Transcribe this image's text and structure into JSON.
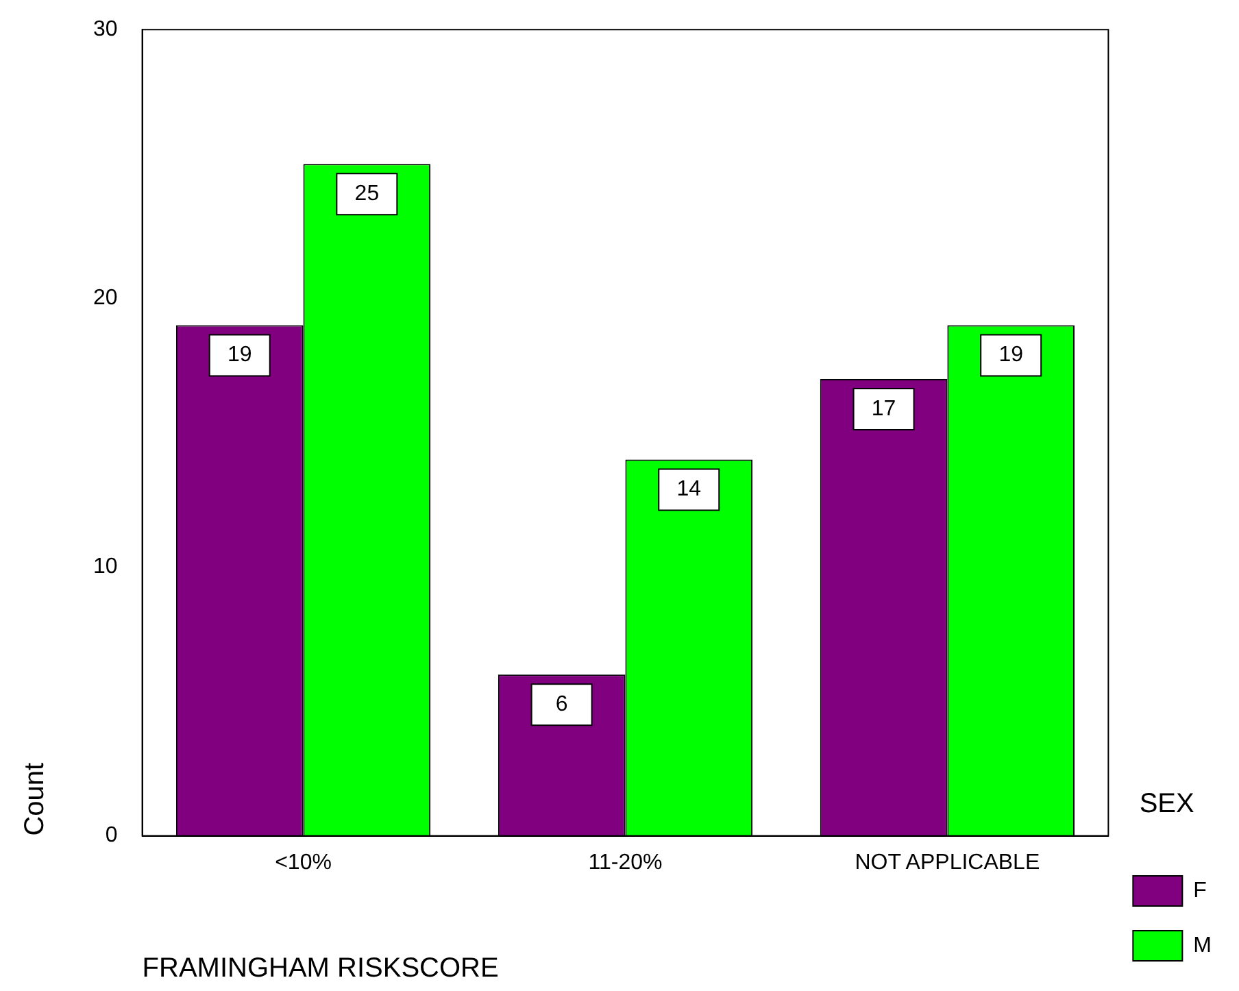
{
  "chart_data": {
    "type": "bar",
    "xlabel": "FRAMINGHAM RISKSCORE",
    "ylabel": "Count",
    "legend_title": "SEX",
    "categories": [
      "<10%",
      "11-20%",
      "NOT APPLICABLE"
    ],
    "series": [
      {
        "name": "F",
        "color": "#800080",
        "values": [
          19,
          6,
          17
        ]
      },
      {
        "name": "M",
        "color": "#00ff00",
        "values": [
          25,
          14,
          19
        ]
      }
    ],
    "ylim": [
      0,
      30
    ],
    "yticks": [
      0,
      10,
      20,
      30
    ],
    "grid": false,
    "legend": "right",
    "data_labels": true
  }
}
